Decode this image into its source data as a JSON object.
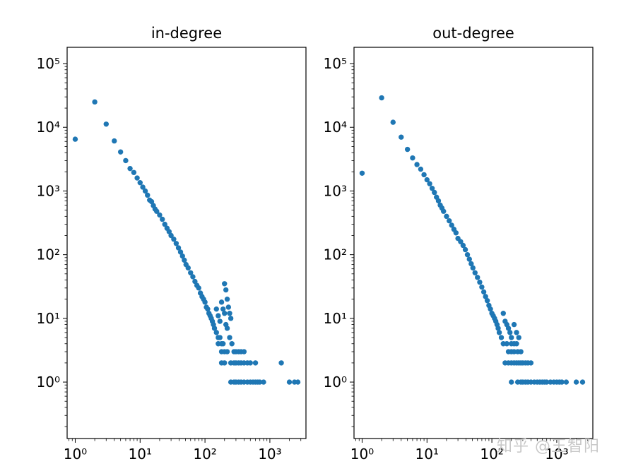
{
  "watermark": "知乎 @王智阳",
  "chart_data": [
    {
      "type": "scatter",
      "title": "in-degree",
      "xscale": "log",
      "yscale": "log",
      "xlim": [
        0.75,
        3600
      ],
      "ylim": [
        0.13,
        180000
      ],
      "xticks": [
        1,
        10,
        100,
        1000
      ],
      "yticks": [
        1,
        10,
        100,
        1000,
        10000,
        100000
      ],
      "color": "#1f77b4",
      "series": [
        {
          "points": [
            [
              1,
              6500
            ],
            [
              2,
              25000
            ],
            [
              3,
              11200
            ],
            [
              4,
              6100
            ],
            [
              5,
              4100
            ],
            [
              6,
              3000
            ],
            [
              7,
              2250
            ],
            [
              8,
              1950
            ],
            [
              9,
              1600
            ],
            [
              10,
              1350
            ],
            [
              11,
              1150
            ],
            [
              12,
              1000
            ],
            [
              13,
              860
            ],
            [
              14,
              720
            ],
            [
              15,
              680
            ],
            [
              16,
              590
            ],
            [
              17,
              520
            ],
            [
              18,
              480
            ],
            [
              20,
              420
            ],
            [
              22,
              360
            ],
            [
              24,
              300
            ],
            [
              26,
              260
            ],
            [
              28,
              230
            ],
            [
              30,
              200
            ],
            [
              33,
              175
            ],
            [
              36,
              150
            ],
            [
              39,
              128
            ],
            [
              42,
              110
            ],
            [
              45,
              95
            ],
            [
              48,
              82
            ],
            [
              51,
              70
            ],
            [
              55,
              62
            ],
            [
              60,
              52
            ],
            [
              65,
              45
            ],
            [
              70,
              38
            ],
            [
              75,
              33
            ],
            [
              80,
              30
            ],
            [
              85,
              25
            ],
            [
              90,
              22
            ],
            [
              95,
              20
            ],
            [
              100,
              18
            ],
            [
              105,
              15
            ],
            [
              110,
              14
            ],
            [
              115,
              12
            ],
            [
              120,
              11
            ],
            [
              125,
              10
            ],
            [
              130,
              9
            ],
            [
              135,
              8
            ],
            [
              140,
              7
            ],
            [
              150,
              6
            ],
            [
              160,
              5
            ],
            [
              170,
              5
            ],
            [
              180,
              4
            ],
            [
              190,
              4
            ],
            [
              200,
              35
            ],
            [
              210,
              28
            ],
            [
              220,
              20
            ],
            [
              230,
              15
            ],
            [
              240,
              12
            ],
            [
              250,
              10
            ],
            [
              180,
              18
            ],
            [
              190,
              14
            ],
            [
              200,
              12
            ],
            [
              150,
              14
            ],
            [
              160,
              11
            ],
            [
              170,
              9
            ],
            [
              210,
              8
            ],
            [
              220,
              7
            ],
            [
              240,
              5
            ],
            [
              260,
              4
            ],
            [
              280,
              3
            ],
            [
              300,
              3
            ],
            [
              330,
              3
            ],
            [
              360,
              3
            ],
            [
              400,
              3
            ],
            [
              160,
              4
            ],
            [
              180,
              3
            ],
            [
              200,
              3
            ],
            [
              220,
              3
            ],
            [
              250,
              2
            ],
            [
              280,
              2
            ],
            [
              300,
              2
            ],
            [
              330,
              2
            ],
            [
              360,
              2
            ],
            [
              400,
              2
            ],
            [
              450,
              2
            ],
            [
              500,
              2
            ],
            [
              600,
              2
            ],
            [
              1500,
              2
            ],
            [
              180,
              2
            ],
            [
              200,
              2
            ],
            [
              250,
              1
            ],
            [
              280,
              1
            ],
            [
              300,
              1
            ],
            [
              330,
              1
            ],
            [
              360,
              1
            ],
            [
              400,
              1
            ],
            [
              450,
              1
            ],
            [
              500,
              1
            ],
            [
              550,
              1
            ],
            [
              600,
              1
            ],
            [
              650,
              1
            ],
            [
              700,
              1
            ],
            [
              800,
              1
            ],
            [
              2000,
              1
            ],
            [
              2400,
              1
            ],
            [
              2700,
              1
            ]
          ]
        }
      ]
    },
    {
      "type": "scatter",
      "title": "out-degree",
      "xscale": "log",
      "yscale": "log",
      "xlim": [
        0.75,
        3600
      ],
      "ylim": [
        0.13,
        180000
      ],
      "xticks": [
        1,
        10,
        100,
        1000
      ],
      "yticks": [
        1,
        10,
        100,
        1000,
        10000,
        100000
      ],
      "color": "#1f77b4",
      "series": [
        {
          "points": [
            [
              1,
              1900
            ],
            [
              2,
              29000
            ],
            [
              3,
              12000
            ],
            [
              4,
              7000
            ],
            [
              5,
              4500
            ],
            [
              6,
              3300
            ],
            [
              7,
              2600
            ],
            [
              8,
              2200
            ],
            [
              9,
              1800
            ],
            [
              10,
              1500
            ],
            [
              11,
              1300
            ],
            [
              12,
              1100
            ],
            [
              13,
              950
            ],
            [
              14,
              800
            ],
            [
              15,
              700
            ],
            [
              16,
              600
            ],
            [
              17,
              540
            ],
            [
              18,
              480
            ],
            [
              20,
              400
            ],
            [
              22,
              340
            ],
            [
              24,
              290
            ],
            [
              26,
              250
            ],
            [
              28,
              220
            ],
            [
              30,
              180
            ],
            [
              33,
              160
            ],
            [
              36,
              140
            ],
            [
              39,
              120
            ],
            [
              42,
              100
            ],
            [
              45,
              85
            ],
            [
              48,
              72
            ],
            [
              51,
              62
            ],
            [
              55,
              52
            ],
            [
              60,
              44
            ],
            [
              65,
              37
            ],
            [
              70,
              31
            ],
            [
              75,
              26
            ],
            [
              80,
              22
            ],
            [
              85,
              19
            ],
            [
              90,
              16
            ],
            [
              95,
              14
            ],
            [
              100,
              12
            ],
            [
              105,
              11
            ],
            [
              110,
              10
            ],
            [
              115,
              9
            ],
            [
              120,
              8
            ],
            [
              125,
              7
            ],
            [
              130,
              6
            ],
            [
              140,
              5
            ],
            [
              150,
              12
            ],
            [
              160,
              9
            ],
            [
              170,
              8
            ],
            [
              180,
              7
            ],
            [
              190,
              6
            ],
            [
              200,
              5
            ],
            [
              220,
              8
            ],
            [
              240,
              6
            ],
            [
              260,
              5
            ],
            [
              200,
              4
            ],
            [
              220,
              4
            ],
            [
              240,
              4
            ],
            [
              150,
              4
            ],
            [
              170,
              4
            ],
            [
              180,
              3
            ],
            [
              200,
              3
            ],
            [
              220,
              3
            ],
            [
              250,
              3
            ],
            [
              280,
              3
            ],
            [
              160,
              2
            ],
            [
              180,
              2
            ],
            [
              200,
              2
            ],
            [
              220,
              2
            ],
            [
              240,
              2
            ],
            [
              260,
              2
            ],
            [
              280,
              2
            ],
            [
              300,
              2
            ],
            [
              330,
              2
            ],
            [
              360,
              2
            ],
            [
              400,
              2
            ],
            [
              200,
              1
            ],
            [
              250,
              1
            ],
            [
              280,
              1
            ],
            [
              300,
              1
            ],
            [
              330,
              1
            ],
            [
              360,
              1
            ],
            [
              400,
              1
            ],
            [
              450,
              1
            ],
            [
              500,
              1
            ],
            [
              550,
              1
            ],
            [
              600,
              1
            ],
            [
              650,
              1
            ],
            [
              700,
              1
            ],
            [
              800,
              1
            ],
            [
              900,
              1
            ],
            [
              1000,
              1
            ],
            [
              1100,
              1
            ],
            [
              1200,
              1
            ],
            [
              1400,
              1
            ],
            [
              2000,
              1
            ],
            [
              2500,
              1
            ]
          ]
        }
      ]
    }
  ]
}
